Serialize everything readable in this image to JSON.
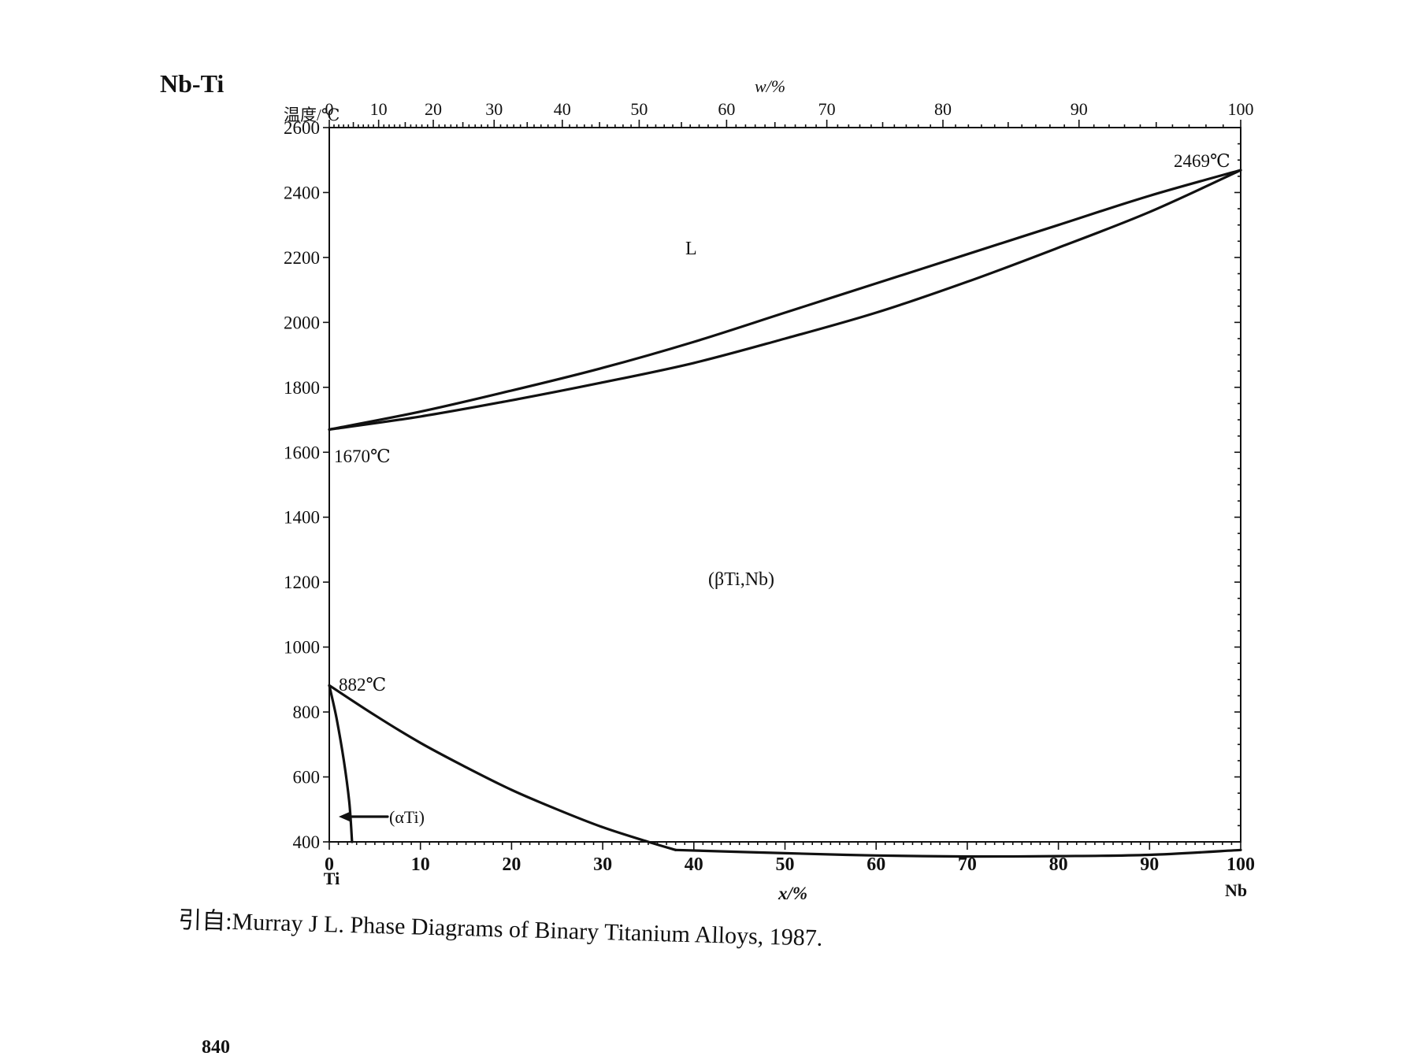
{
  "figure": {
    "system_title": "Nb-Ti",
    "source_caption": "引自:Murray J L.  Phase Diagrams of Binary Titanium Alloys, 1987.",
    "page_number": "840"
  },
  "chart_data": {
    "type": "line",
    "title": "",
    "ylabel": "温度/℃",
    "xlabel_bottom": "x/%",
    "xlabel_top": "w/%",
    "left_element": "Ti",
    "right_element": "Nb",
    "xlim": [
      0,
      100
    ],
    "ylim": [
      400,
      2600
    ],
    "bottom_ticks": [
      0,
      10,
      20,
      30,
      40,
      50,
      60,
      70,
      80,
      90,
      100
    ],
    "top_ticks": [
      0,
      10,
      20,
      30,
      40,
      50,
      60,
      70,
      80,
      90,
      100
    ],
    "y_ticks": [
      400,
      600,
      800,
      1000,
      1200,
      1400,
      1600,
      1800,
      2000,
      2200,
      2400,
      2600
    ],
    "grid": false,
    "phase_labels": {
      "liquid": "L",
      "beta": "(βTi,Nb)",
      "alpha": "(αTi)"
    },
    "annotations": {
      "ti_melting": "1670℃",
      "nb_melting": "2469℃",
      "ti_transformation": "882℃"
    },
    "series": [
      {
        "name": "liquidus",
        "x": [
          0,
          10,
          20,
          30,
          40,
          50,
          60,
          70,
          80,
          90,
          100
        ],
        "y": [
          1670,
          1725,
          1790,
          1860,
          1940,
          2030,
          2120,
          2210,
          2300,
          2390,
          2469
        ]
      },
      {
        "name": "solidus",
        "x": [
          0,
          10,
          20,
          30,
          40,
          50,
          60,
          70,
          80,
          90,
          100
        ],
        "y": [
          1670,
          1710,
          1760,
          1815,
          1875,
          1950,
          2030,
          2125,
          2230,
          2340,
          2469
        ]
      },
      {
        "name": "beta_transus",
        "x": [
          0,
          5,
          10,
          15,
          20,
          25,
          30,
          35,
          38
        ],
        "y": [
          882,
          790,
          705,
          630,
          560,
          500,
          445,
          400,
          375
        ]
      },
      {
        "name": "alpha_solvus",
        "x": [
          0,
          0.8,
          1.6,
          2.2,
          2.5
        ],
        "y": [
          882,
          780,
          650,
          520,
          400
        ]
      },
      {
        "name": "lower_boundary",
        "x": [
          38,
          50,
          60,
          70,
          80,
          90,
          100
        ],
        "y": [
          375,
          365,
          358,
          355,
          356,
          360,
          375
        ]
      }
    ]
  }
}
